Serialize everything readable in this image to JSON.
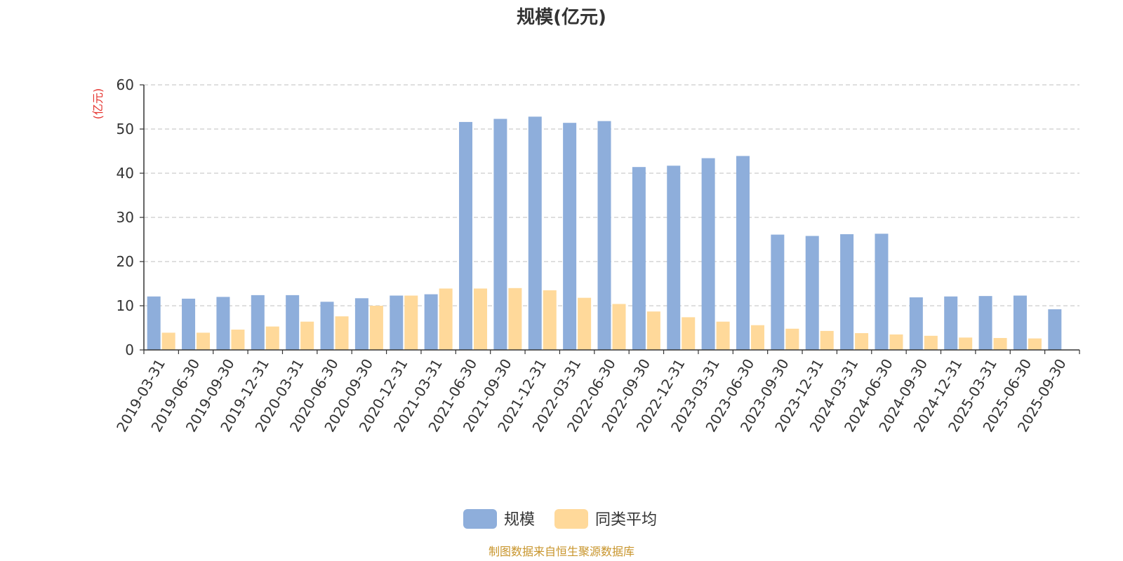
{
  "chart_data": {
    "type": "bar",
    "title": "规模(亿元)",
    "unit_label": "(亿元)",
    "categories": [
      "2019-03-31",
      "2019-06-30",
      "2019-09-30",
      "2019-12-31",
      "2020-03-31",
      "2020-06-30",
      "2020-09-30",
      "2020-12-31",
      "2021-03-31",
      "2021-06-30",
      "2021-09-30",
      "2021-12-31",
      "2022-03-31",
      "2022-06-30",
      "2022-09-30",
      "2022-12-31",
      "2023-03-31",
      "2023-06-30",
      "2023-09-30",
      "2023-12-31",
      "2024-03-31",
      "2024-06-30",
      "2024-09-30",
      "2024-12-31",
      "2025-03-31",
      "2025-06-30",
      "2025-09-30"
    ],
    "series": [
      {
        "name": "规模",
        "color": "#8eaedb",
        "values": [
          12.1,
          11.6,
          12.0,
          12.4,
          12.4,
          10.9,
          11.7,
          12.3,
          12.6,
          51.6,
          52.3,
          52.8,
          51.4,
          51.8,
          41.4,
          41.7,
          43.4,
          43.9,
          26.1,
          25.8,
          26.2,
          26.3,
          11.9,
          12.1,
          12.2,
          12.3,
          9.2
        ]
      },
      {
        "name": "同类平均",
        "color": "#ffd99a",
        "values": [
          3.9,
          3.9,
          4.6,
          5.3,
          6.4,
          7.6,
          10.0,
          12.3,
          13.9,
          13.9,
          14.0,
          13.5,
          11.8,
          10.4,
          8.7,
          7.4,
          6.4,
          5.6,
          4.8,
          4.3,
          3.8,
          3.5,
          3.2,
          2.8,
          2.7,
          2.6,
          null
        ]
      }
    ],
    "ylim": [
      0,
      60
    ],
    "yticks": [
      0,
      10,
      20,
      30,
      40,
      50,
      60
    ],
    "grid": true,
    "legend_position": "bottom-center"
  },
  "footer": {
    "source": "制图数据来自恒生聚源数据库"
  }
}
